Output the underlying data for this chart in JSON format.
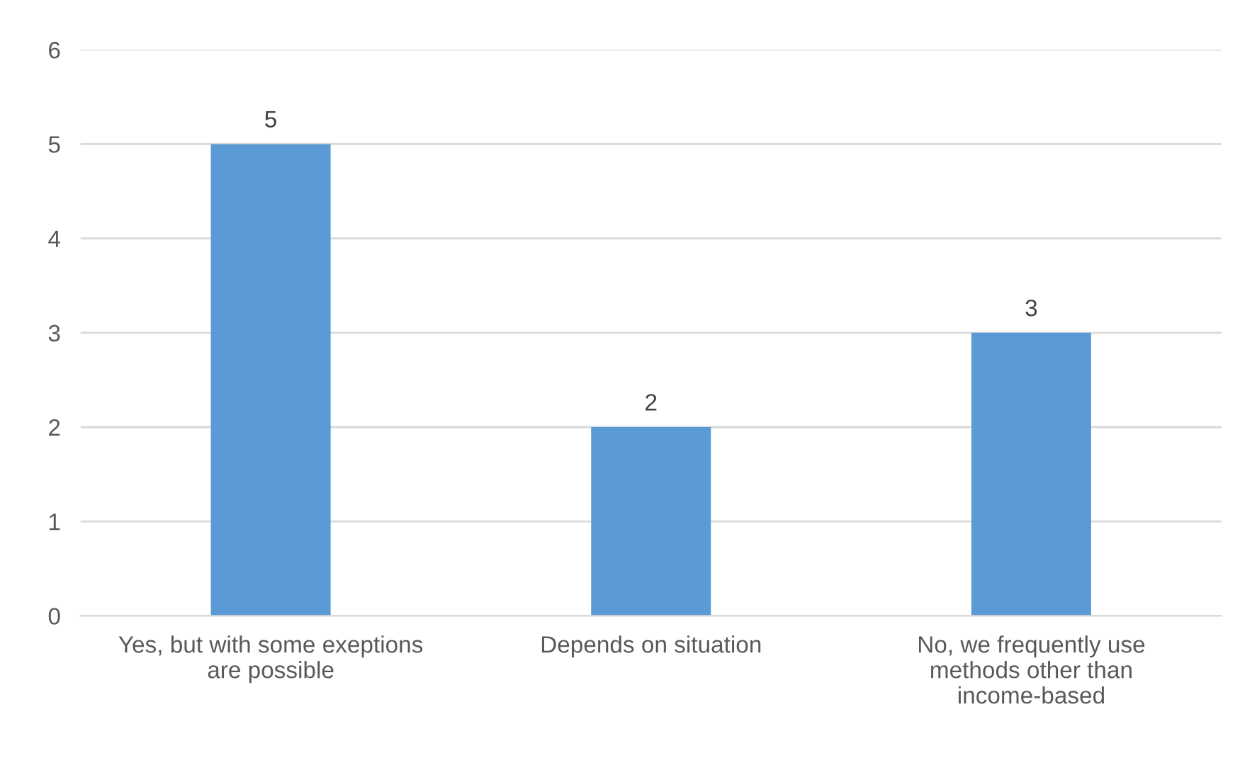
{
  "chart_data": {
    "type": "bar",
    "categories": [
      "Yes, but with some exeptions are possible",
      "Depends on situation",
      "No, we frequently use methods other than income-based"
    ],
    "values": [
      5,
      2,
      3
    ],
    "color": "#5b9bd5",
    "ylim": [
      0,
      6
    ],
    "yticks": [
      0,
      1,
      2,
      3,
      4,
      5,
      6
    ],
    "grid": "y",
    "data_labels": true
  }
}
